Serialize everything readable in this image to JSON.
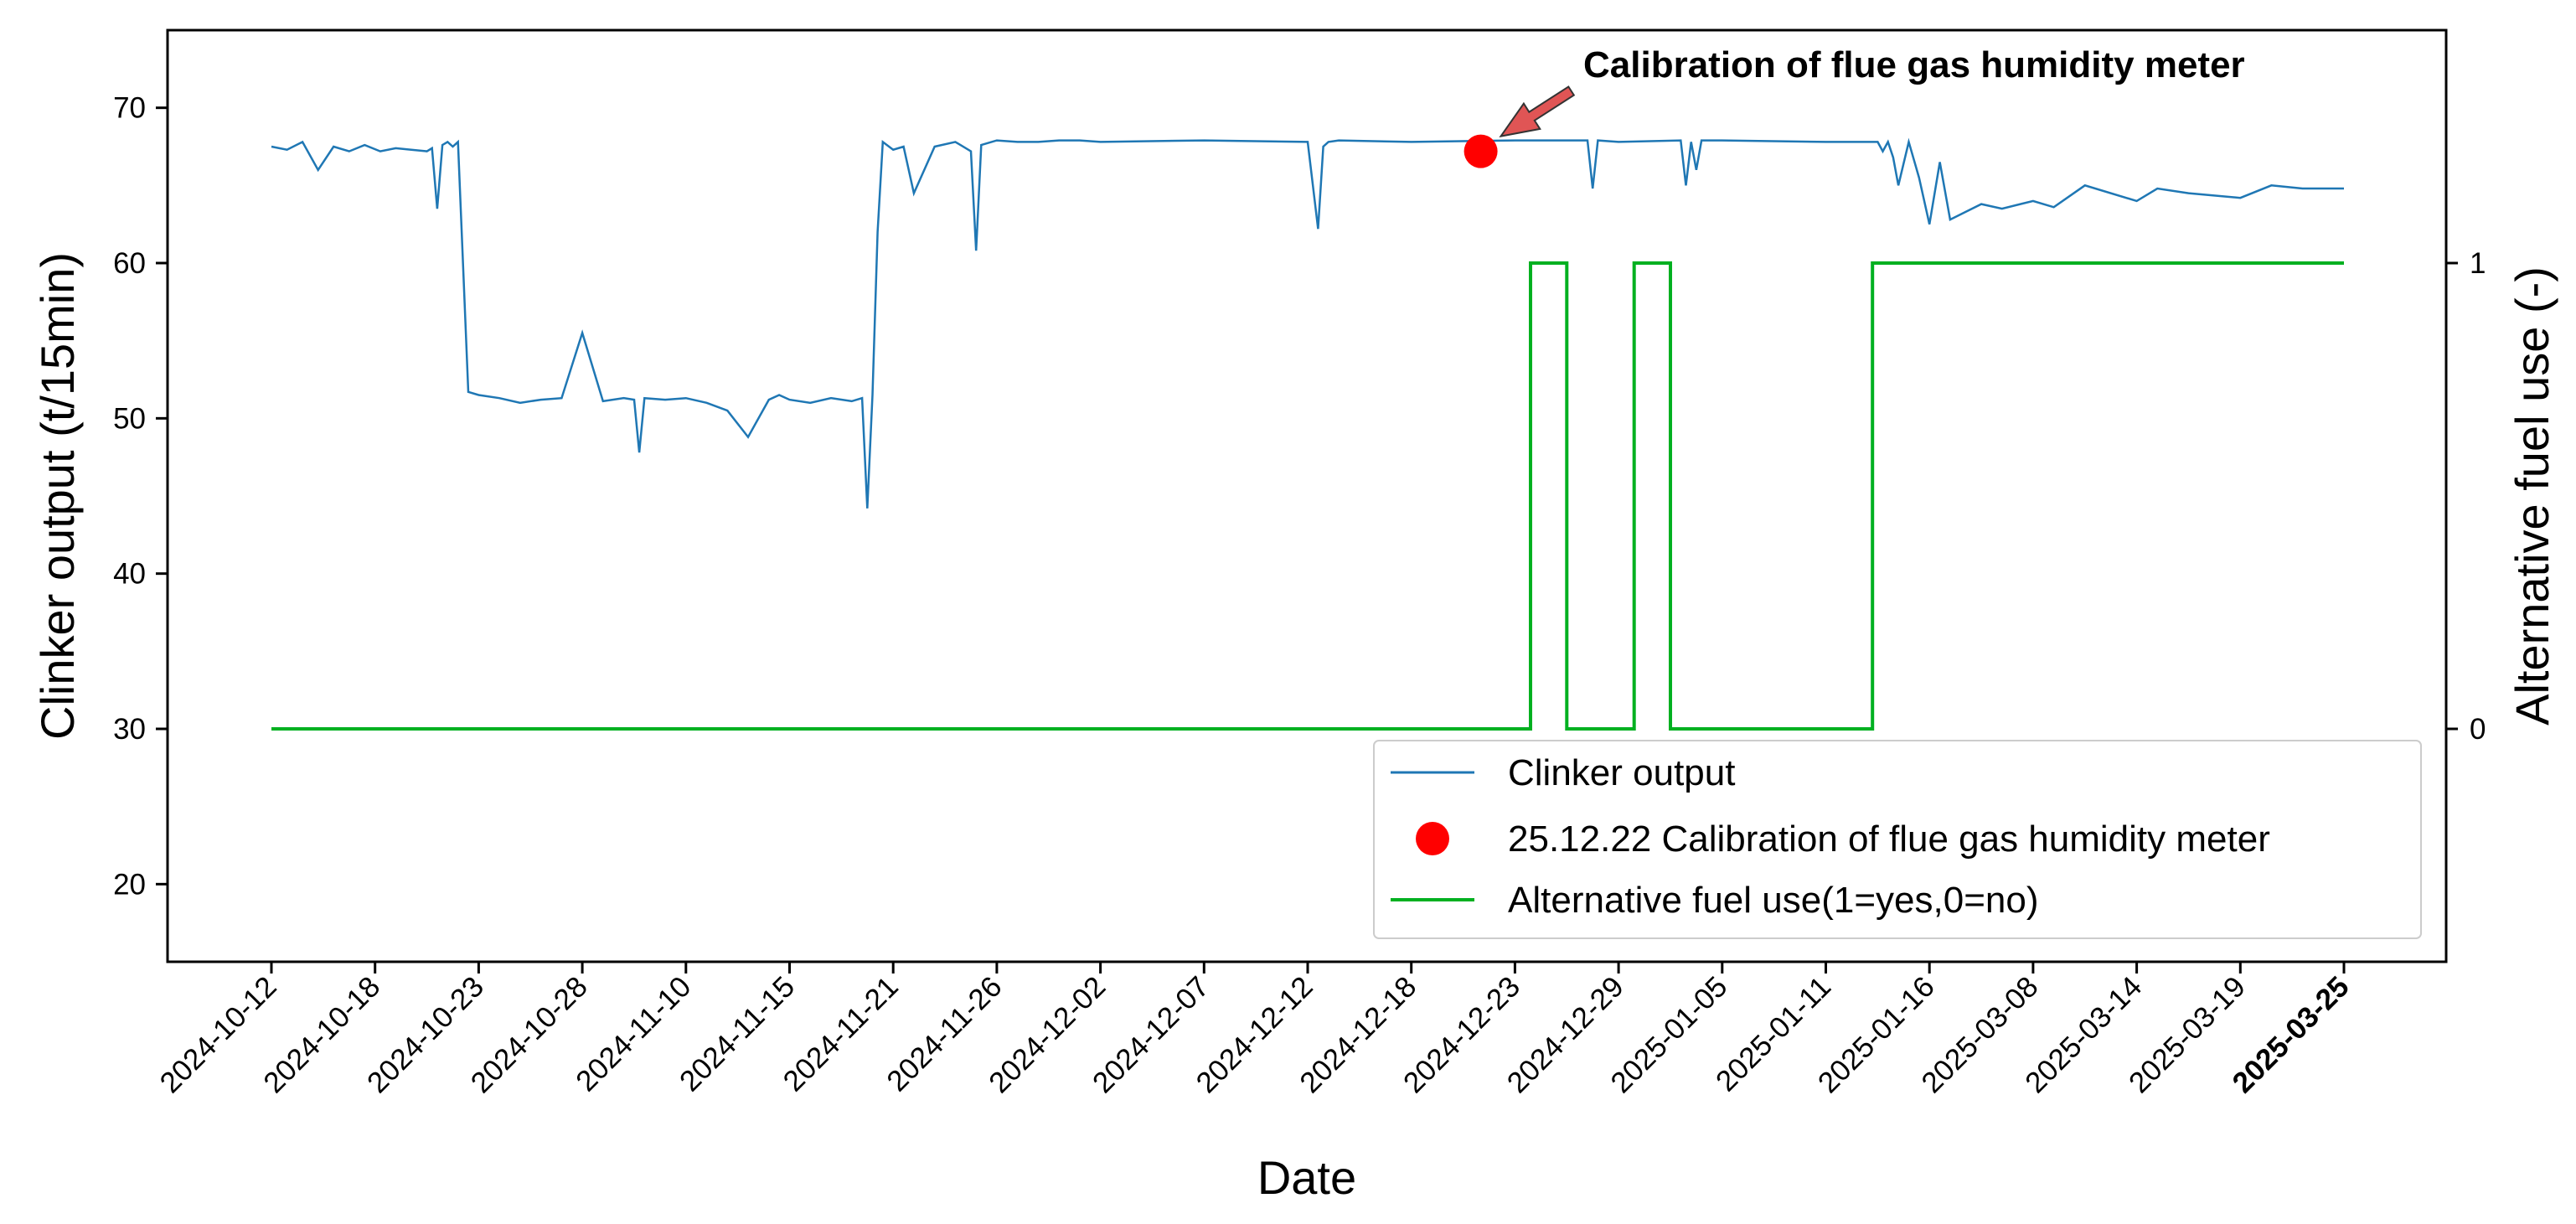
{
  "chart_data": {
    "type": "line",
    "title": "",
    "xlabel": "Date",
    "ylabel": "Clinker output (t/15min)",
    "y2label": "Alternative fuel use (-)",
    "ylim": [
      15,
      75
    ],
    "y2lim": [
      -0.5,
      1.5
    ],
    "y_ticks": [
      20,
      30,
      40,
      50,
      60,
      70
    ],
    "y2_ticks": [
      0,
      1
    ],
    "x_tick_labels": [
      "2024-10-12",
      "2024-10-18",
      "2024-10-23",
      "2024-10-28",
      "2024-11-10",
      "2024-11-15",
      "2024-11-21",
      "2024-11-26",
      "2024-12-02",
      "2024-12-07",
      "2024-12-12",
      "2024-12-18",
      "2024-12-23",
      "2024-12-29",
      "2025-01-05",
      "2025-01-11",
      "2025-01-16",
      "2025-03-08",
      "2025-03-14",
      "2025-03-19",
      "2025-03-25"
    ],
    "x_tick_bold": "2025-03-25",
    "grid": false,
    "legend_position": "lower-right",
    "colors": {
      "clinker": "#1f77b4",
      "fuel": "#00b020",
      "event": "#ff0000"
    },
    "series": [
      {
        "name": "Clinker output",
        "axis": "left",
        "x_index": [
          0.0,
          0.15,
          0.3,
          0.45,
          0.6,
          0.75,
          0.9,
          1.05,
          1.2,
          1.35,
          1.5,
          1.55,
          1.6,
          1.65,
          1.7,
          1.75,
          1.8,
          1.9,
          2.0,
          2.2,
          2.4,
          2.6,
          2.8,
          3.0,
          3.2,
          3.4,
          3.5,
          3.55,
          3.6,
          3.8,
          4.0,
          4.2,
          4.4,
          4.6,
          4.8,
          4.9,
          5.0,
          5.2,
          5.4,
          5.6,
          5.7,
          5.75,
          5.8,
          5.85,
          5.9,
          6.0,
          6.1,
          6.2,
          6.4,
          6.6,
          6.75,
          6.8,
          6.85,
          7.0,
          7.2,
          7.4,
          7.6,
          7.8,
          8.0,
          9.0,
          10.0,
          10.05,
          10.1,
          10.15,
          10.2,
          10.3,
          11.0,
          12.0,
          12.7,
          12.75,
          12.8,
          13.0,
          13.6,
          13.65,
          13.7,
          13.75,
          13.8,
          14.0,
          15.0,
          15.5,
          15.55,
          15.6,
          15.65,
          15.7,
          15.8,
          15.9,
          16.0,
          16.1,
          16.2,
          16.5,
          16.7,
          17.0,
          17.2,
          17.5,
          18.0,
          18.2,
          18.5,
          19.0,
          19.3,
          19.6,
          20.0
        ],
        "values": [
          67.5,
          67.3,
          67.8,
          66.0,
          67.5,
          67.2,
          67.6,
          67.2,
          67.4,
          67.3,
          67.2,
          67.4,
          63.5,
          67.6,
          67.8,
          67.5,
          67.8,
          51.7,
          51.5,
          51.3,
          51.0,
          51.2,
          51.3,
          55.5,
          51.1,
          51.3,
          51.2,
          47.8,
          51.3,
          51.2,
          51.3,
          51.0,
          50.5,
          48.8,
          51.2,
          51.5,
          51.2,
          51.0,
          51.3,
          51.1,
          51.3,
          44.2,
          51.5,
          62.0,
          67.8,
          67.3,
          67.5,
          64.5,
          67.5,
          67.8,
          67.2,
          60.8,
          67.6,
          67.9,
          67.8,
          67.8,
          67.9,
          67.9,
          67.8,
          67.9,
          67.8,
          65.0,
          62.2,
          67.5,
          67.8,
          67.9,
          67.8,
          67.9,
          67.9,
          64.8,
          67.9,
          67.8,
          67.9,
          65.0,
          67.8,
          66.0,
          67.9,
          67.9,
          67.8,
          67.8,
          67.2,
          67.8,
          66.8,
          65.0,
          67.8,
          65.5,
          62.5,
          66.5,
          62.8,
          63.8,
          63.5,
          64.0,
          63.6,
          65.0,
          64.0,
          64.8,
          64.5,
          64.2,
          65.0,
          64.8,
          64.8
        ]
      },
      {
        "name": "25.12.22 Calibration of flue gas humidity meter",
        "axis": "left",
        "x_index": [
          11.67
        ],
        "values": [
          67.2
        ]
      },
      {
        "name": "Alternative fuel use(1=yes,0=no)",
        "axis": "right",
        "x_index": [
          0.0,
          12.15,
          12.15,
          12.5,
          12.5,
          13.15,
          13.15,
          13.5,
          13.5,
          15.45,
          15.45,
          20.0
        ],
        "values": [
          0,
          0,
          1,
          1,
          0,
          0,
          1,
          1,
          0,
          0,
          1,
          1
        ]
      }
    ],
    "annotation": {
      "text": "Calibration of flue gas humidity meter",
      "x_index": 11.67,
      "y": 67.2
    }
  }
}
